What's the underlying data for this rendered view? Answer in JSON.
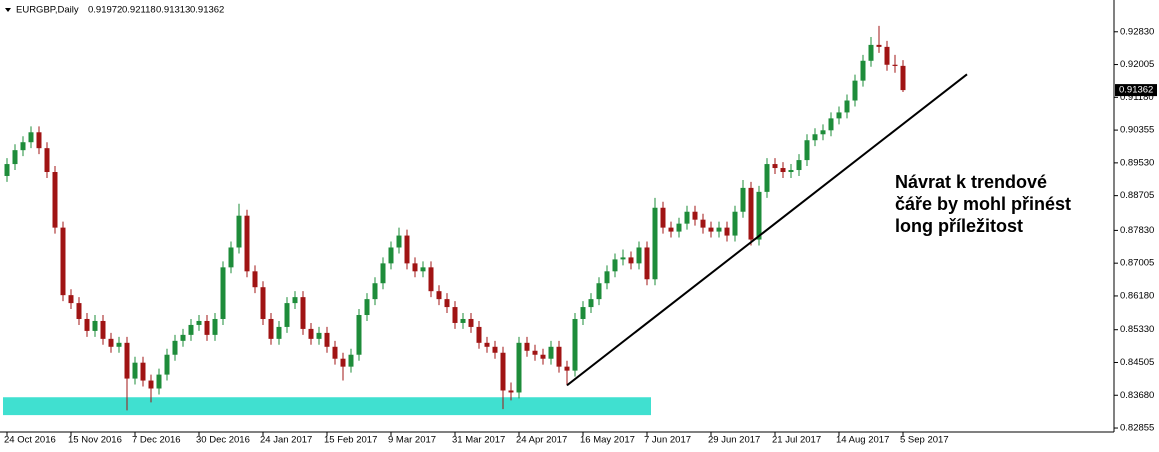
{
  "chart_data": {
    "type": "candlestick",
    "symbol": "EURGBP,Daily",
    "categories": [
      "24 Oct 2016",
      null,
      null,
      null,
      null,
      null,
      null,
      null,
      "15 Nov 2016",
      null,
      null,
      null,
      null,
      null,
      null,
      null,
      "7 Dec 2016",
      null,
      null,
      null,
      null,
      null,
      null,
      null,
      "30 Dec 2016",
      null,
      null,
      null,
      null,
      null,
      null,
      null,
      "24 Jan 2017",
      null,
      null,
      null,
      null,
      null,
      null,
      null,
      "15 Feb 2017",
      null,
      null,
      null,
      null,
      null,
      null,
      null,
      "9 Mar 2017",
      null,
      null,
      null,
      null,
      null,
      null,
      null,
      "31 Mar 2017",
      null,
      null,
      null,
      null,
      null,
      null,
      null,
      "24 Apr 2017",
      null,
      null,
      null,
      null,
      null,
      null,
      null,
      "16 May 2017",
      null,
      null,
      null,
      null,
      null,
      null,
      null,
      "7 Jun 2017",
      null,
      null,
      null,
      null,
      null,
      null,
      null,
      "29 Jun 2017",
      null,
      null,
      null,
      null,
      null,
      null,
      null,
      "21 Jul 2017",
      null,
      null,
      null,
      null,
      null,
      null,
      null,
      "14 Aug 2017",
      null,
      null,
      null,
      null,
      null,
      null,
      null,
      "5 Sep 2017"
    ],
    "open": [
      0.892,
      0.895,
      0.8985,
      0.9005,
      0.903,
      0.899,
      0.893,
      0.879,
      0.862,
      0.86,
      0.856,
      0.853,
      0.8555,
      0.851,
      0.849,
      0.85,
      0.841,
      0.845,
      0.8405,
      0.8385,
      0.842,
      0.847,
      0.8505,
      0.852,
      0.8545,
      0.8555,
      0.852,
      0.856,
      0.869,
      0.874,
      0.882,
      0.868,
      0.864,
      0.856,
      0.851,
      0.854,
      0.86,
      0.8615,
      0.8535,
      0.851,
      0.8525,
      0.849,
      0.846,
      0.844,
      0.847,
      0.857,
      0.861,
      0.865,
      0.87,
      0.874,
      0.877,
      0.87,
      0.868,
      0.869,
      0.863,
      0.861,
      0.859,
      0.855,
      0.856,
      0.854,
      0.85,
      0.849,
      0.8475,
      0.838,
      0.8375,
      0.85,
      0.848,
      0.847,
      0.846,
      0.849,
      0.844,
      0.843,
      0.856,
      0.859,
      0.861,
      0.865,
      0.868,
      0.871,
      0.8715,
      0.87,
      0.874,
      0.866,
      0.884,
      0.879,
      0.878,
      0.88,
      0.883,
      0.881,
      0.879,
      0.878,
      0.879,
      0.877,
      0.883,
      0.889,
      0.876,
      0.888,
      0.895,
      0.894,
      0.893,
      0.8935,
      0.896,
      0.901,
      0.9025,
      0.9035,
      0.9065,
      0.908,
      0.911,
      0.916,
      0.921,
      0.925,
      0.9245,
      0.92,
      0.91972
    ],
    "high": [
      0.8965,
      0.9,
      0.902,
      0.9045,
      0.9045,
      0.9005,
      0.8945,
      0.8805,
      0.8635,
      0.8615,
      0.8575,
      0.857,
      0.857,
      0.8525,
      0.8515,
      0.8515,
      0.8465,
      0.8465,
      0.842,
      0.8435,
      0.8485,
      0.852,
      0.8535,
      0.856,
      0.857,
      0.857,
      0.8575,
      0.8705,
      0.8755,
      0.885,
      0.8835,
      0.8695,
      0.8655,
      0.8575,
      0.8555,
      0.8615,
      0.863,
      0.863,
      0.855,
      0.854,
      0.854,
      0.8505,
      0.8475,
      0.8485,
      0.8585,
      0.8625,
      0.8665,
      0.8715,
      0.8755,
      0.879,
      0.8785,
      0.8715,
      0.8705,
      0.8705,
      0.8645,
      0.8625,
      0.8605,
      0.8575,
      0.8575,
      0.8555,
      0.8515,
      0.8505,
      0.849,
      0.84,
      0.8515,
      0.8515,
      0.8495,
      0.8485,
      0.8505,
      0.8505,
      0.8455,
      0.8575,
      0.8605,
      0.8625,
      0.8665,
      0.8695,
      0.8725,
      0.8735,
      0.873,
      0.8755,
      0.8755,
      0.8865,
      0.8855,
      0.8805,
      0.8815,
      0.8845,
      0.8845,
      0.8825,
      0.8805,
      0.8805,
      0.8805,
      0.8845,
      0.891,
      0.8905,
      0.8895,
      0.8965,
      0.8965,
      0.8955,
      0.895,
      0.8975,
      0.9025,
      0.904,
      0.905,
      0.908,
      0.9095,
      0.9125,
      0.9175,
      0.9225,
      0.927,
      0.9298,
      0.926,
      0.9225,
      0.92118
    ],
    "low": [
      0.8905,
      0.8935,
      0.897,
      0.899,
      0.8975,
      0.8915,
      0.8775,
      0.8605,
      0.8585,
      0.8545,
      0.8515,
      0.8515,
      0.8495,
      0.8475,
      0.8475,
      0.833,
      0.8395,
      0.839,
      0.835,
      0.837,
      0.8405,
      0.8455,
      0.849,
      0.8505,
      0.853,
      0.8505,
      0.8505,
      0.8545,
      0.8675,
      0.8725,
      0.8665,
      0.8625,
      0.8545,
      0.8495,
      0.8495,
      0.8525,
      0.8585,
      0.852,
      0.8495,
      0.8495,
      0.8475,
      0.8445,
      0.8405,
      0.8425,
      0.8455,
      0.8555,
      0.8595,
      0.8635,
      0.8685,
      0.8725,
      0.8685,
      0.8665,
      0.8665,
      0.8615,
      0.8595,
      0.8575,
      0.8535,
      0.8535,
      0.8525,
      0.8485,
      0.8475,
      0.846,
      0.8333,
      0.8355,
      0.836,
      0.8465,
      0.8455,
      0.8445,
      0.8445,
      0.8425,
      0.8393,
      0.8415,
      0.8545,
      0.8575,
      0.8595,
      0.8635,
      0.8665,
      0.8695,
      0.8685,
      0.8685,
      0.8645,
      0.8645,
      0.8775,
      0.8765,
      0.8765,
      0.8785,
      0.8795,
      0.8775,
      0.8765,
      0.8765,
      0.8755,
      0.8755,
      0.8815,
      0.8745,
      0.8745,
      0.8865,
      0.8925,
      0.8915,
      0.8915,
      0.892,
      0.8945,
      0.8995,
      0.901,
      0.902,
      0.905,
      0.9065,
      0.9095,
      0.9145,
      0.9195,
      0.923,
      0.9185,
      0.918,
      0.91313
    ],
    "close": [
      0.895,
      0.8985,
      0.9005,
      0.903,
      0.899,
      0.893,
      0.879,
      0.862,
      0.86,
      0.856,
      0.853,
      0.8555,
      0.851,
      0.849,
      0.85,
      0.841,
      0.845,
      0.8405,
      0.8385,
      0.842,
      0.847,
      0.8505,
      0.852,
      0.8545,
      0.8555,
      0.852,
      0.856,
      0.869,
      0.874,
      0.882,
      0.868,
      0.864,
      0.856,
      0.851,
      0.854,
      0.86,
      0.8615,
      0.8535,
      0.851,
      0.8525,
      0.849,
      0.846,
      0.844,
      0.847,
      0.857,
      0.861,
      0.865,
      0.87,
      0.874,
      0.877,
      0.87,
      0.868,
      0.869,
      0.863,
      0.861,
      0.859,
      0.855,
      0.856,
      0.854,
      0.85,
      0.849,
      0.8475,
      0.838,
      0.8375,
      0.85,
      0.848,
      0.847,
      0.846,
      0.849,
      0.844,
      0.843,
      0.856,
      0.859,
      0.861,
      0.865,
      0.868,
      0.871,
      0.8715,
      0.87,
      0.874,
      0.866,
      0.884,
      0.879,
      0.878,
      0.88,
      0.883,
      0.881,
      0.879,
      0.878,
      0.879,
      0.877,
      0.883,
      0.889,
      0.876,
      0.888,
      0.895,
      0.894,
      0.893,
      0.8935,
      0.896,
      0.901,
      0.9025,
      0.9035,
      0.9065,
      0.908,
      0.911,
      0.916,
      0.921,
      0.925,
      0.9245,
      0.92,
      0.9197,
      0.91362
    ],
    "up_color": "#1e8c3a",
    "down_color": "#a01414",
    "ylim": [
      0.82755,
      0.9363
    ],
    "yticks": [
      {
        "value": 0.9283,
        "label": "0.92830"
      },
      0.92005,
      {
        "value": 0.9118,
        "label": "0.91180"
      },
      0.90355,
      {
        "value": 0.8953,
        "label": "0.89530"
      },
      0.88705,
      {
        "value": 0.8783,
        "label": "0.87830"
      },
      0.87005,
      {
        "value": 0.8618,
        "label": "0.86180"
      },
      {
        "value": 0.8533,
        "label": "0.85330"
      },
      0.84505,
      {
        "value": 0.8368,
        "label": "0.83680"
      },
      0.82855
    ],
    "zone": {
      "x": [
        0,
        81
      ],
      "y": [
        0.8318,
        0.8363
      ],
      "color": "#40e0d0"
    },
    "trendline": {
      "x": [
        70,
        120
      ],
      "y": [
        0.8393,
        0.9176
      ],
      "color": "#000000"
    },
    "annotation": [
      "Návrat k trendové",
      "čáře by mohl přinést",
      "long příležitost"
    ]
  }
}
